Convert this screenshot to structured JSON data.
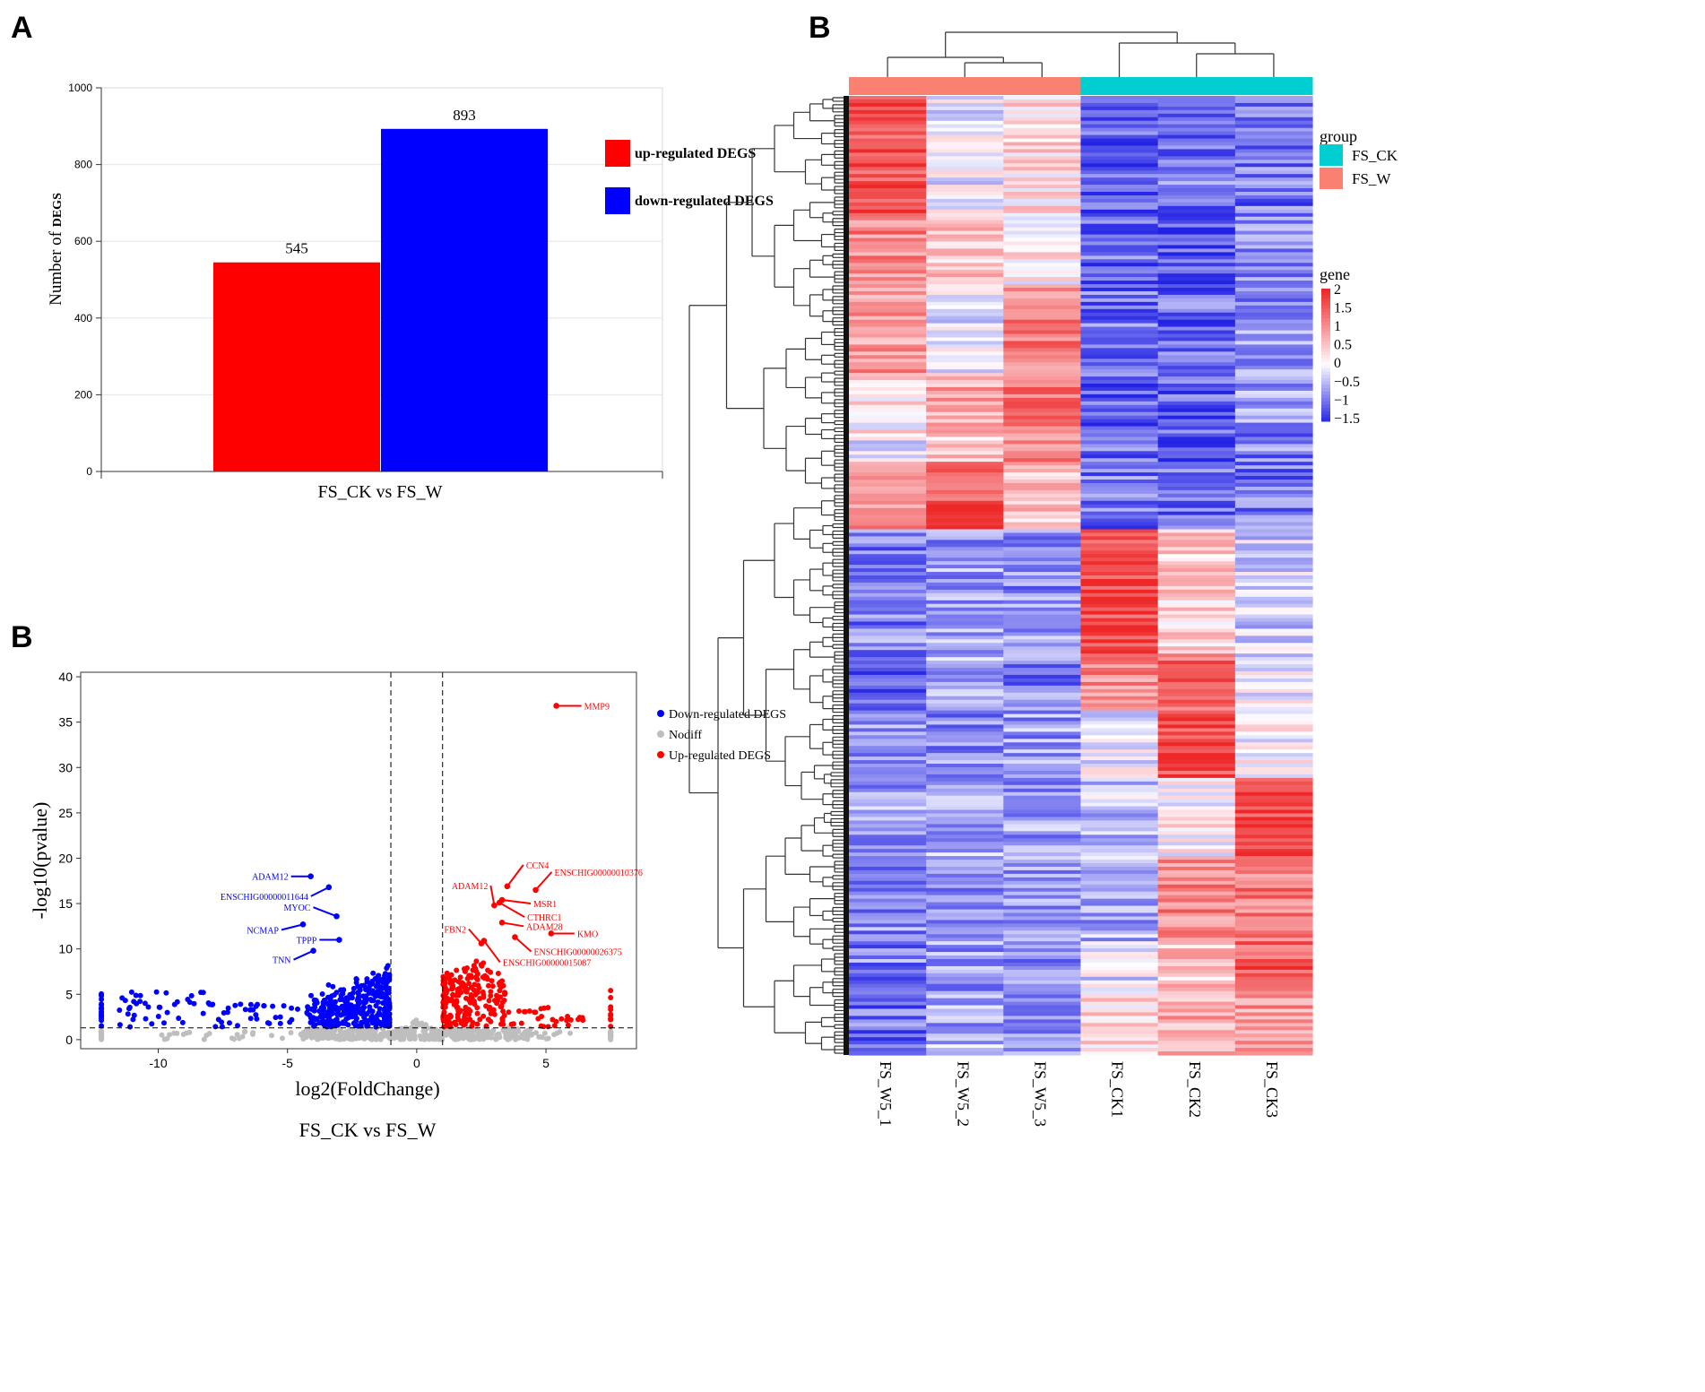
{
  "panels": {
    "a": "A",
    "b_volcano": "B",
    "b_heatmap": "B"
  },
  "colors": {
    "up": "#ff0000",
    "down": "#0000ff",
    "nodiff": "#bebebe",
    "fs_ck": "#00ced1",
    "fs_w": "#fa8072"
  },
  "chart_data": [
    {
      "type": "bar",
      "title": "",
      "categories": [
        "FS_CK vs FS_W"
      ],
      "xlabel": "FS_CK vs FS_W",
      "ylabel": "Number of DEGS",
      "ylabel_prefix": "Number  of",
      "ylabel_suffix": "DEGS",
      "ylim": [
        0,
        1000
      ],
      "yticks": [
        0,
        200,
        400,
        600,
        800,
        1000
      ],
      "series": [
        {
          "name": "up-regulated DEGS",
          "values": [
            545
          ],
          "color": "#ff0000"
        },
        {
          "name": "down-regulated DEGS",
          "values": [
            893
          ],
          "color": "#0000ff"
        }
      ],
      "legend": [
        "up-regulated DEGS",
        "down-regulated DEGS"
      ]
    },
    {
      "type": "scatter",
      "title": "FS_CK vs FS_W",
      "xlabel": "log2(FoldChange)",
      "ylabel": "-log10(pvalue)",
      "xlim": [
        -13,
        8.5
      ],
      "ylim": [
        -1,
        40.5
      ],
      "xticks": [
        -10,
        -5,
        0,
        5
      ],
      "yticks": [
        0,
        5,
        10,
        15,
        20,
        25,
        30,
        35,
        40
      ],
      "thresholds": {
        "log2fc": [
          -1,
          1
        ],
        "neg_log10_p": 1.3
      },
      "legend": [
        "Down-regulated DEGS",
        "Nodiff",
        "Up-regulated DEGS"
      ],
      "labeled_points": [
        {
          "label": "MMP9",
          "x": 5.4,
          "y": 36.8,
          "group": "up"
        },
        {
          "label": "CCN4",
          "x": 3.5,
          "y": 16.9,
          "group": "up"
        },
        {
          "label": "ENSCHIG00000010376",
          "x": 4.6,
          "y": 16.5,
          "group": "up"
        },
        {
          "label": "ADAM12",
          "x": 3.0,
          "y": 14.8,
          "group": "up"
        },
        {
          "label": "MSR1",
          "x": 3.3,
          "y": 15.4,
          "group": "up"
        },
        {
          "label": "CTHRC1",
          "x": 3.2,
          "y": 15.1,
          "group": "up"
        },
        {
          "label": "ADAM28",
          "x": 3.3,
          "y": 12.9,
          "group": "up"
        },
        {
          "label": "KMO",
          "x": 5.2,
          "y": 11.7,
          "group": "up"
        },
        {
          "label": "FBN2",
          "x": 2.5,
          "y": 10.6,
          "group": "up"
        },
        {
          "label": "ENSCHIG00000026375",
          "x": 3.8,
          "y": 11.3,
          "group": "up"
        },
        {
          "label": "ENSCHIG00000015087",
          "x": 2.6,
          "y": 10.9,
          "group": "up"
        },
        {
          "label": "ADAM12",
          "x": -4.1,
          "y": 18.0,
          "group": "down"
        },
        {
          "label": "ENSCHIG00000011644",
          "x": -3.4,
          "y": 16.8,
          "group": "down"
        },
        {
          "label": "MYOC",
          "x": -3.1,
          "y": 13.6,
          "group": "down"
        },
        {
          "label": "NCMAP",
          "x": -4.4,
          "y": 12.7,
          "group": "down"
        },
        {
          "label": "TPPP",
          "x": -3.0,
          "y": 11.0,
          "group": "down"
        },
        {
          "label": "TNN",
          "x": -4.0,
          "y": 9.8,
          "group": "down"
        }
      ]
    },
    {
      "type": "heatmap",
      "title": "",
      "columns": [
        "FS_W5_1",
        "FS_W5_2",
        "FS_W5_3",
        "FS_CK1",
        "FS_CK2",
        "FS_CK3"
      ],
      "column_groups": [
        "FS_W",
        "FS_W",
        "FS_W",
        "FS_CK",
        "FS_CK",
        "FS_CK"
      ],
      "group_legend_title": "group",
      "group_legend": [
        "FS_CK",
        "FS_W"
      ],
      "color_legend_title": "gene",
      "color_scale_ticks": [
        "2",
        "1.5",
        "1",
        "0.5",
        "0",
        "−0.5",
        "−1",
        "−1.5"
      ],
      "zlim": [
        -1.6,
        2
      ],
      "row_blocks": [
        {
          "rows_fraction": 0.0,
          "values": [
            1.6,
            -0.1,
            0.3,
            -1.2,
            -1.0,
            -1.0
          ]
        },
        {
          "rows_fraction": 0.12,
          "values": [
            1.1,
            0.4,
            0.2,
            -1.1,
            -1.3,
            -0.9
          ]
        },
        {
          "rows_fraction": 0.2,
          "values": [
            0.9,
            -0.1,
            1.2,
            -1.0,
            -1.1,
            -0.8
          ]
        },
        {
          "rows_fraction": 0.29,
          "values": [
            0.2,
            0.8,
            1.4,
            -1.1,
            -1.2,
            -0.7
          ]
        },
        {
          "rows_fraction": 0.35,
          "values": [
            -0.2,
            0.4,
            1.2,
            -1.0,
            -1.4,
            -0.9
          ]
        },
        {
          "rows_fraction": 0.38,
          "values": [
            0.9,
            1.6,
            0.5,
            -1.0,
            -1.1,
            -1.0
          ]
        },
        {
          "rows_fraction": 0.45,
          "values": [
            -0.9,
            -0.7,
            -0.8,
            1.7,
            0.4,
            -0.3
          ]
        },
        {
          "rows_fraction": 0.58,
          "values": [
            -1.0,
            -0.6,
            -0.9,
            1.1,
            1.4,
            -0.1
          ]
        },
        {
          "rows_fraction": 0.64,
          "values": [
            -0.8,
            -0.8,
            -0.7,
            -0.2,
            1.7,
            0.0
          ]
        },
        {
          "rows_fraction": 0.71,
          "values": [
            -0.7,
            -0.6,
            -0.7,
            -0.4,
            0.1,
            1.8
          ]
        },
        {
          "rows_fraction": 0.79,
          "values": [
            -0.8,
            -0.7,
            -0.8,
            -0.6,
            1.1,
            1.2
          ]
        },
        {
          "rows_fraction": 0.88,
          "values": [
            -0.9,
            -0.7,
            -0.8,
            -0.2,
            0.5,
            1.5
          ]
        },
        {
          "rows_fraction": 0.94,
          "values": [
            -1.0,
            -0.6,
            -0.7,
            0.3,
            0.7,
            0.9
          ]
        }
      ]
    }
  ]
}
